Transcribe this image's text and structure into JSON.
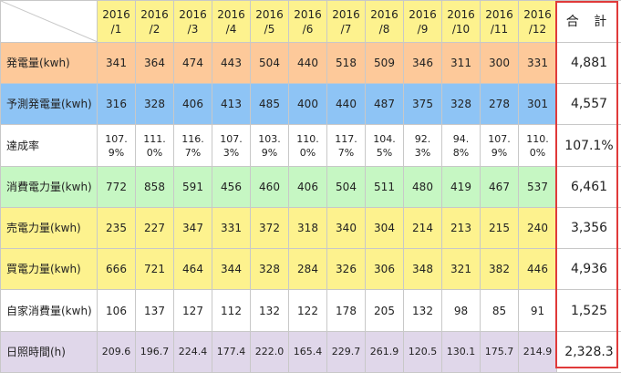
{
  "months": [
    "2016\n/1",
    "2016\n/2",
    "2016\n/3",
    "2016\n/4",
    "2016\n/5",
    "2016\n/6",
    "2016\n/7",
    "2016\n/8",
    "2016\n/9",
    "2016\n/10",
    "2016\n/11",
    "2016\n/12"
  ],
  "total_label": "合 計",
  "colors": {
    "header": "#fdf28e",
    "generation": "#fdc99a",
    "forecast": "#8ec4f5",
    "white": "#ffffff",
    "consumption": "#c6f7c3",
    "yellow": "#fdf28e",
    "sunshine": "#e0d7ea",
    "highlight": "#e03a3a"
  },
  "rows": [
    {
      "key": "generation",
      "label": "発電量(kwh)",
      "values": [
        "341",
        "364",
        "474",
        "443",
        "504",
        "440",
        "518",
        "509",
        "346",
        "311",
        "300",
        "331"
      ],
      "total": "4,881"
    },
    {
      "key": "forecast",
      "label": "予測発電量(kwh)",
      "values": [
        "316",
        "328",
        "406",
        "413",
        "485",
        "400",
        "440",
        "487",
        "375",
        "328",
        "278",
        "301"
      ],
      "total": "4,557"
    },
    {
      "key": "achievement",
      "label": "達成率",
      "values": [
        "107.\n9%",
        "111.\n0%",
        "116.\n7%",
        "107.\n3%",
        "103.\n9%",
        "110.\n0%",
        "117.\n7%",
        "104.\n5%",
        "92.\n3%",
        "94.\n8%",
        "107.\n9%",
        "110.\n0%"
      ],
      "total": "107.1%"
    },
    {
      "key": "consumption",
      "label": "消費電力量(kwh)",
      "values": [
        "772",
        "858",
        "591",
        "456",
        "460",
        "406",
        "504",
        "511",
        "480",
        "419",
        "467",
        "537"
      ],
      "total": "6,461"
    },
    {
      "key": "sold",
      "label": "売電力量(kwh)",
      "values": [
        "235",
        "227",
        "347",
        "331",
        "372",
        "318",
        "340",
        "304",
        "214",
        "213",
        "215",
        "240"
      ],
      "total": "3,356"
    },
    {
      "key": "bought",
      "label": "買電力量(kwh)",
      "values": [
        "666",
        "721",
        "464",
        "344",
        "328",
        "284",
        "326",
        "306",
        "348",
        "321",
        "382",
        "446"
      ],
      "total": "4,936"
    },
    {
      "key": "self",
      "label": "自家消費量(kwh)",
      "values": [
        "106",
        "137",
        "127",
        "112",
        "132",
        "122",
        "178",
        "205",
        "132",
        "98",
        "85",
        "91"
      ],
      "total": "1,525"
    },
    {
      "key": "sunshine",
      "label": "日照時間(h)",
      "values": [
        "209.6",
        "196.7",
        "224.4",
        "177.4",
        "222.0",
        "165.4",
        "229.7",
        "261.9",
        "120.5",
        "130.1",
        "175.7",
        "214.9"
      ],
      "total": "2,328.3"
    }
  ]
}
